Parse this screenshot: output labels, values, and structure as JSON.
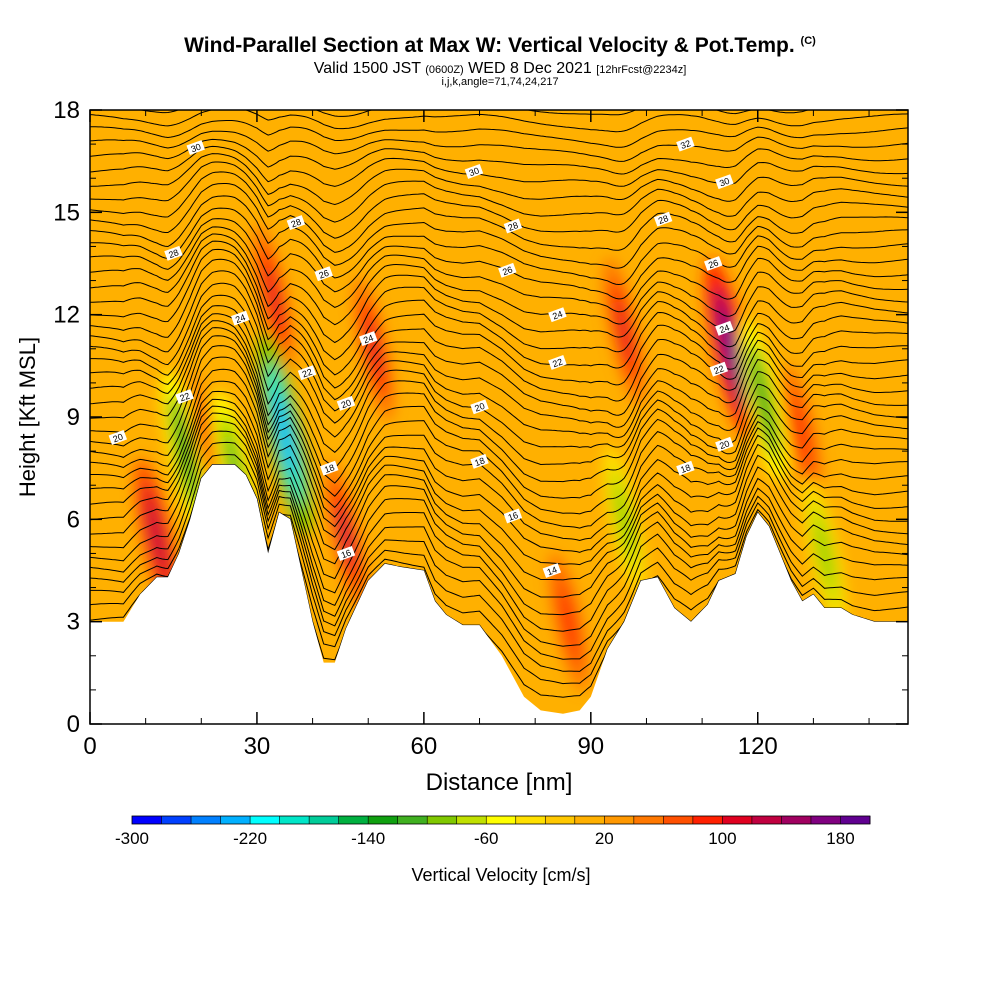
{
  "header": {
    "title": "Wind-Parallel Section at Max W: Vertical Velocity & Pot.Temp.",
    "copyright": "(C)",
    "valid_prefix": "Valid 1500 JST",
    "valid_utc": "(0600Z)",
    "valid_date": "WED 8 Dec 2021",
    "forecast": "[12hrFcst@2234z]",
    "indices": "i,j,k,angle=71,74,24,217"
  },
  "chart_data": {
    "type": "heatmap",
    "xlabel": "Distance [nm]",
    "ylabel": "Height [Kft MSL]",
    "xlim": [
      0,
      147
    ],
    "ylim": [
      0,
      18
    ],
    "xticks": [
      "0",
      "30",
      "60",
      "90",
      "120"
    ],
    "yticks": [
      "0",
      "3",
      "6",
      "9",
      "12",
      "15",
      "18"
    ],
    "colorbar": {
      "label": "Vertical Velocity [cm/s]",
      "min": -300,
      "step": 20,
      "tick_labels": [
        "-300",
        "-220",
        "-140",
        "-60",
        "20",
        "100",
        "180"
      ],
      "colors": [
        "#0000ff",
        "#0040ff",
        "#0080ff",
        "#00b0ff",
        "#00ffff",
        "#00e6c8",
        "#00cc99",
        "#00b040",
        "#10a010",
        "#40b020",
        "#80c800",
        "#c0e000",
        "#ffff00",
        "#ffe000",
        "#ffc800",
        "#ffb000",
        "#ff9800",
        "#ff7800",
        "#ff5000",
        "#ff2000",
        "#e00020",
        "#c00040",
        "#a00060",
        "#800080",
        "#600090"
      ]
    },
    "terrain_kft": [
      [
        0,
        3.0
      ],
      [
        6,
        3.0
      ],
      [
        9,
        3.8
      ],
      [
        12,
        4.3
      ],
      [
        14,
        4.3
      ],
      [
        16,
        5.0
      ],
      [
        18,
        6.0
      ],
      [
        20,
        7.2
      ],
      [
        22,
        7.6
      ],
      [
        26,
        7.6
      ],
      [
        28,
        7.3
      ],
      [
        30,
        6.6
      ],
      [
        32,
        5.0
      ],
      [
        34,
        6.2
      ],
      [
        36,
        6.0
      ],
      [
        38,
        4.5
      ],
      [
        40,
        3.0
      ],
      [
        42,
        1.8
      ],
      [
        44,
        1.8
      ],
      [
        46,
        2.8
      ],
      [
        48,
        3.5
      ],
      [
        50,
        4.2
      ],
      [
        53,
        4.7
      ],
      [
        56,
        4.6
      ],
      [
        60,
        4.5
      ],
      [
        62,
        3.6
      ],
      [
        64,
        3.2
      ],
      [
        67,
        2.9
      ],
      [
        70,
        2.9
      ],
      [
        74,
        2.0
      ],
      [
        78,
        0.8
      ],
      [
        81,
        0.4
      ],
      [
        85,
        0.3
      ],
      [
        88,
        0.4
      ],
      [
        90,
        0.8
      ],
      [
        93,
        2.2
      ],
      [
        96,
        3.0
      ],
      [
        99,
        4.2
      ],
      [
        102,
        4.3
      ],
      [
        105,
        3.4
      ],
      [
        108,
        3.0
      ],
      [
        111,
        3.5
      ],
      [
        113,
        4.2
      ],
      [
        116,
        4.4
      ],
      [
        118,
        5.5
      ],
      [
        120,
        6.2
      ],
      [
        122,
        5.8
      ],
      [
        124,
        5.0
      ],
      [
        126,
        4.2
      ],
      [
        128,
        3.6
      ],
      [
        130,
        3.8
      ],
      [
        132,
        3.4
      ],
      [
        135,
        3.4
      ],
      [
        137,
        3.2
      ],
      [
        141,
        3.0
      ],
      [
        147,
        3.0
      ]
    ],
    "w_features": [
      {
        "x": 12,
        "y": 5.5,
        "value": 120
      },
      {
        "x": 17,
        "y": 8.0,
        "value": -140
      },
      {
        "x": 21,
        "y": 8.5,
        "value": 60
      },
      {
        "x": 26,
        "y": 7.5,
        "value": -120
      },
      {
        "x": 33,
        "y": 12.5,
        "value": 100
      },
      {
        "x": 35,
        "y": 8.5,
        "value": -240
      },
      {
        "x": 46,
        "y": 5.5,
        "value": 110
      },
      {
        "x": 51,
        "y": 11.0,
        "value": 90
      },
      {
        "x": 86,
        "y": 3.0,
        "value": 80
      },
      {
        "x": 96,
        "y": 11.5,
        "value": 100
      },
      {
        "x": 96,
        "y": 6.0,
        "value": -100
      },
      {
        "x": 115,
        "y": 11.0,
        "value": 180
      },
      {
        "x": 121,
        "y": 9.5,
        "value": -140
      },
      {
        "x": 128,
        "y": 8.5,
        "value": 80
      },
      {
        "x": 132,
        "y": 5.0,
        "value": -110
      }
    ],
    "isentrope_labels": [
      {
        "text": "30",
        "x": 19,
        "y": 16.9
      },
      {
        "text": "30",
        "x": 69,
        "y": 16.2
      },
      {
        "text": "32",
        "x": 107,
        "y": 17.0
      },
      {
        "text": "30",
        "x": 114,
        "y": 15.9
      },
      {
        "text": "28",
        "x": 37,
        "y": 14.7
      },
      {
        "text": "28",
        "x": 15,
        "y": 13.8
      },
      {
        "text": "28",
        "x": 76,
        "y": 14.6
      },
      {
        "text": "28",
        "x": 103,
        "y": 14.8
      },
      {
        "text": "26",
        "x": 42,
        "y": 13.2
      },
      {
        "text": "26",
        "x": 75,
        "y": 13.3
      },
      {
        "text": "26",
        "x": 112,
        "y": 13.5
      },
      {
        "text": "24",
        "x": 27,
        "y": 11.9
      },
      {
        "text": "24",
        "x": 50,
        "y": 11.3
      },
      {
        "text": "24",
        "x": 84,
        "y": 12.0
      },
      {
        "text": "24",
        "x": 114,
        "y": 11.6
      },
      {
        "text": "22",
        "x": 17,
        "y": 9.6
      },
      {
        "text": "22",
        "x": 39,
        "y": 10.3
      },
      {
        "text": "22",
        "x": 84,
        "y": 10.6
      },
      {
        "text": "22",
        "x": 113,
        "y": 10.4
      },
      {
        "text": "20",
        "x": 5,
        "y": 8.4
      },
      {
        "text": "20",
        "x": 46,
        "y": 9.4
      },
      {
        "text": "20",
        "x": 70,
        "y": 9.3
      },
      {
        "text": "20",
        "x": 114,
        "y": 8.2
      },
      {
        "text": "18",
        "x": 43,
        "y": 7.5
      },
      {
        "text": "18",
        "x": 70,
        "y": 7.7
      },
      {
        "text": "18",
        "x": 107,
        "y": 7.5
      },
      {
        "text": "16",
        "x": 76,
        "y": 6.1
      },
      {
        "text": "16",
        "x": 46,
        "y": 5.0
      },
      {
        "text": "14",
        "x": 83,
        "y": 4.5
      }
    ]
  }
}
